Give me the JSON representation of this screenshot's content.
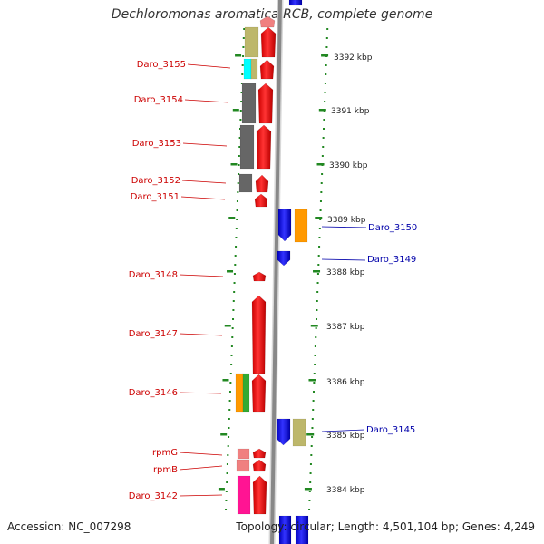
{
  "title": "Dechloromonas aromatica RCB, complete genome",
  "footer": {
    "accession": "Accession: NC_007298",
    "topology": "Topology: circular; Length: 4,501,104 bp; Genes: 4,249"
  },
  "scale_labels": [
    "3392 kbp",
    "3391 kbp",
    "3390 kbp",
    "3389 kbp",
    "3388 kbp",
    "3387 kbp",
    "3386 kbp",
    "3385 kbp",
    "3384 kbp"
  ],
  "left_labels": [
    "Daro_3155",
    "Daro_3154",
    "Daro_3153",
    "Daro_3152",
    "Daro_3151",
    "Daro_3148",
    "Daro_3147",
    "Daro_3146",
    "rpmG",
    "rpmB",
    "Daro_3142"
  ],
  "right_labels": [
    "Daro_3150",
    "Daro_3149",
    "Daro_3145"
  ],
  "colors": {
    "left_label": "#cc0000",
    "right_label": "#0000aa",
    "forward_gene": "#ff0000",
    "reverse_gene": "#0000ff",
    "backbone": "#888888",
    "tick": "#228822",
    "khaki": "#bdb76b",
    "cyan": "#00ffff",
    "gray": "#666666",
    "orange": "#ff9900",
    "green": "#33aa33",
    "salmon": "#f08080",
    "magenta": "#ff1493"
  }
}
